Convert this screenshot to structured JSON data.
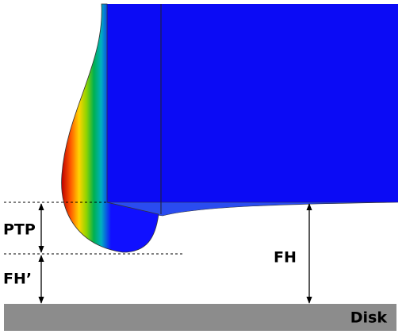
{
  "labels": {
    "ptp": "PTP",
    "fh_prime": "FH’",
    "fh": "FH",
    "disk": "Disk"
  }
}
